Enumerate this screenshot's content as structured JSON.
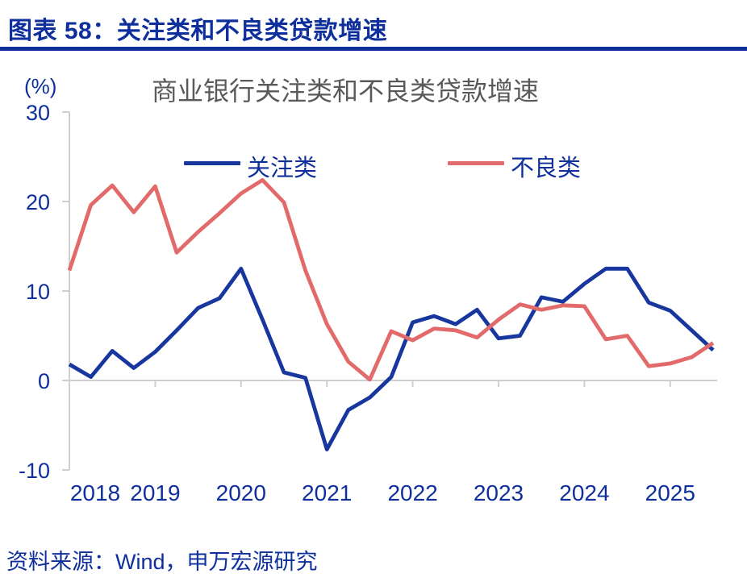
{
  "header": {
    "title": "图表 58：关注类和不良类贷款增速"
  },
  "chart_data": {
    "type": "line",
    "title": "商业银行关注类和不良类贷款增速",
    "unit_label": "(%)",
    "ylim": [
      -10,
      30
    ],
    "y_ticks": [
      "30",
      "20",
      "10",
      "0",
      "-10"
    ],
    "y_tick_values": [
      30,
      20,
      10,
      0,
      -10
    ],
    "x_tick_labels": [
      "2018",
      "2019",
      "2020",
      "2021",
      "2022",
      "2023",
      "2024",
      "2025"
    ],
    "x": [
      "2018Q1",
      "2018Q2",
      "2018Q3",
      "2018Q4",
      "2019Q1",
      "2019Q2",
      "2019Q3",
      "2019Q4",
      "2020Q1",
      "2020Q2",
      "2020Q3",
      "2020Q4",
      "2021Q1",
      "2021Q2",
      "2021Q3",
      "2021Q4",
      "2022Q1",
      "2022Q2",
      "2022Q3",
      "2022Q4",
      "2023Q1",
      "2023Q2",
      "2023Q3",
      "2023Q4",
      "2024Q1",
      "2024Q2",
      "2024Q3",
      "2024Q4",
      "2025Q1",
      "2025Q2",
      "2025Q3"
    ],
    "grid": "zero-baseline-only",
    "legend_position": "top-inside",
    "series": [
      {
        "name": "关注类",
        "color": "#17379E",
        "values": [
          1.8,
          0.4,
          3.3,
          1.4,
          3.2,
          5.6,
          8.1,
          9.2,
          12.5,
          6.8,
          0.9,
          0.3,
          -7.7,
          -3.3,
          -1.9,
          0.4,
          6.5,
          7.2,
          6.3,
          7.9,
          4.7,
          5.0,
          9.3,
          8.8,
          10.8,
          12.5,
          12.5,
          8.7,
          7.8,
          5.6,
          3.4
        ]
      },
      {
        "name": "不良类",
        "color": "#E26A6A",
        "values": [
          12.3,
          19.6,
          21.8,
          18.8,
          21.7,
          14.3,
          16.6,
          18.7,
          20.9,
          22.4,
          19.9,
          12.3,
          6.3,
          2.1,
          0.1,
          5.5,
          4.5,
          5.8,
          5.6,
          4.8,
          6.8,
          8.5,
          7.9,
          8.4,
          8.3,
          4.6,
          5.0,
          1.6,
          1.9,
          2.6,
          4.2
        ]
      }
    ]
  },
  "source": {
    "text": "资料来源：Wind，申万宏源研究"
  },
  "colors": {
    "navy": "#0E2F9C",
    "title_gray": "#595959",
    "axis_gray": "#CFCFCF"
  }
}
